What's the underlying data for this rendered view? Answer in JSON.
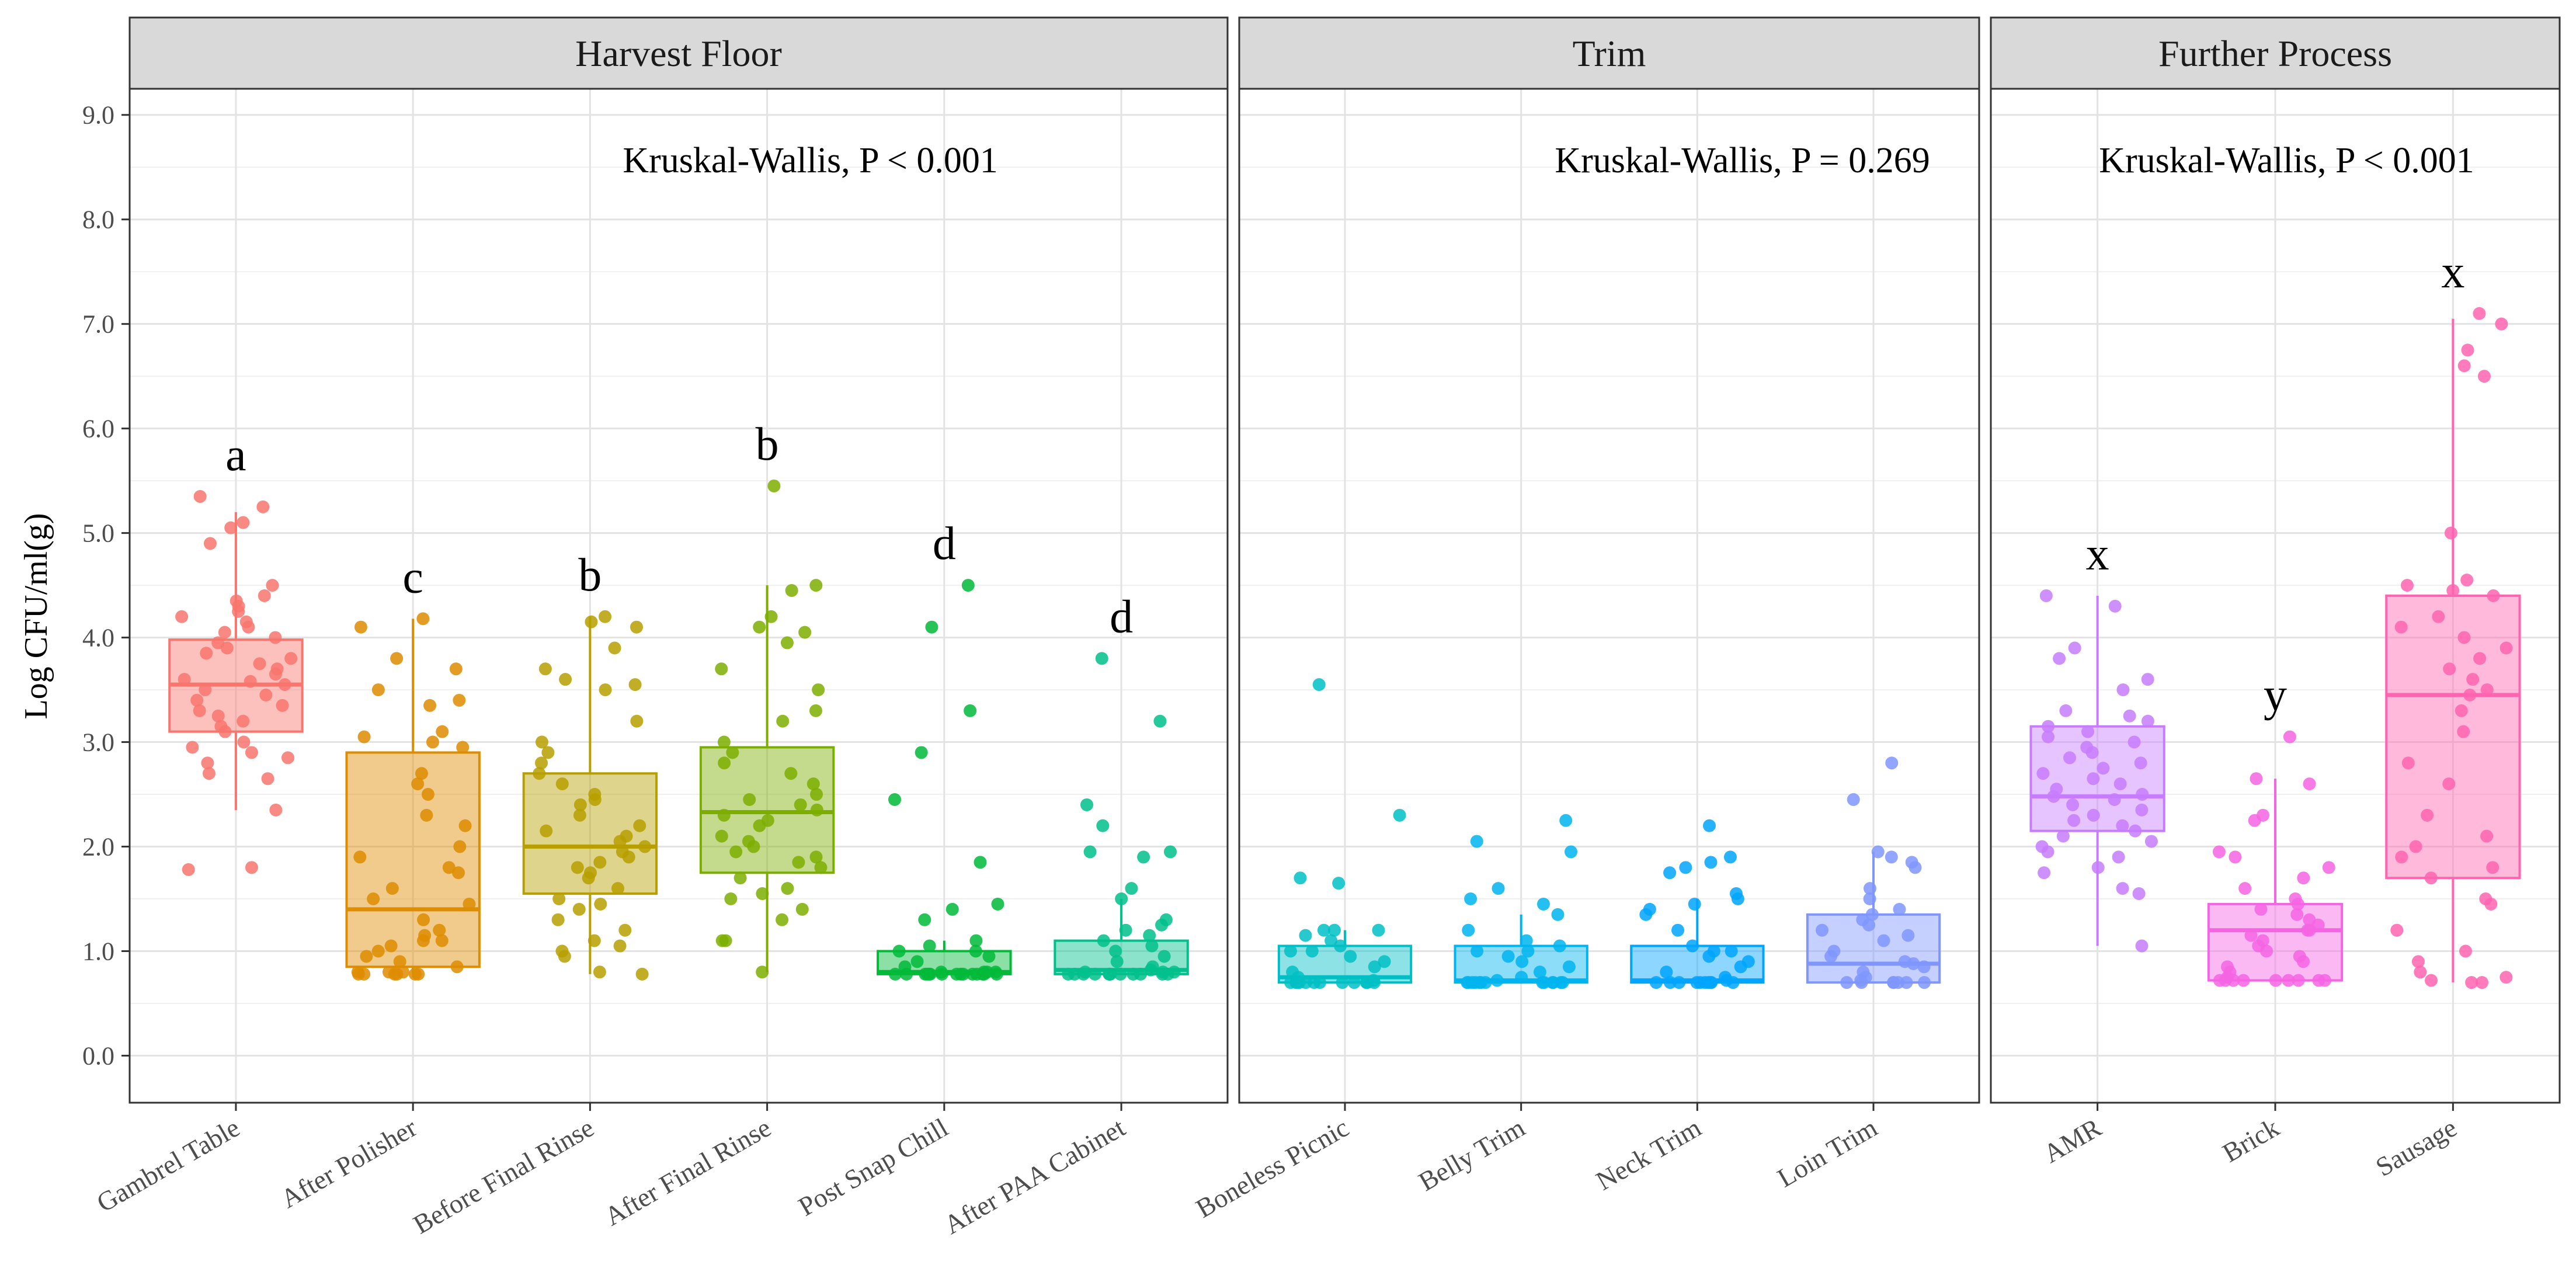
{
  "chart_data": {
    "type": "box",
    "ylabel": "Log CFU/ml(g)",
    "ylim": [
      -0.45,
      9.25
    ],
    "yticks": [
      "0.0",
      "1.0",
      "2.0",
      "3.0",
      "4.0",
      "5.0",
      "6.0",
      "7.0",
      "8.0",
      "9.0"
    ],
    "grid": true,
    "panels": [
      {
        "title": "Harvest Floor",
        "stat": "Kruskal-Wallis, P < 0.001",
        "groups": [
          {
            "name": "Gambrel Table",
            "color": "#F8766D",
            "letter": "a",
            "q1": 3.1,
            "median": 3.55,
            "q3": 3.98,
            "whisker_low": 2.35,
            "whisker_high": 5.2,
            "points": [
              5.35,
              5.25,
              5.1,
              5.05,
              4.9,
              4.5,
              4.4,
              4.35,
              4.3,
              4.25,
              4.2,
              4.15,
              4.1,
              4.05,
              4.0,
              3.95,
              3.9,
              3.85,
              3.8,
              3.75,
              3.7,
              3.65,
              3.6,
              3.58,
              3.55,
              3.5,
              3.45,
              3.4,
              3.35,
              3.3,
              3.25,
              3.2,
              3.15,
              3.1,
              3.0,
              2.95,
              2.9,
              2.85,
              2.8,
              2.7,
              2.65,
              2.35,
              1.8,
              1.78
            ]
          },
          {
            "name": "After Polisher",
            "color": "#DE8C00",
            "letter": "c",
            "q1": 0.85,
            "median": 1.4,
            "q3": 2.9,
            "whisker_low": 0.78,
            "whisker_high": 4.18,
            "points": [
              4.18,
              4.1,
              3.8,
              3.7,
              3.5,
              3.4,
              3.35,
              3.1,
              3.05,
              3.0,
              2.95,
              2.7,
              2.6,
              2.5,
              2.3,
              2.2,
              2.0,
              1.9,
              1.8,
              1.75,
              1.6,
              1.5,
              1.45,
              1.3,
              1.2,
              1.15,
              1.1,
              1.1,
              1.05,
              1.0,
              0.95,
              0.9,
              0.85,
              0.8,
              0.8,
              0.8,
              0.78,
              0.78,
              0.78,
              0.78,
              0.78,
              0.78
            ]
          },
          {
            "name": "Before Final Rinse",
            "color": "#B79F00",
            "letter": "b",
            "q1": 1.55,
            "median": 2.0,
            "q3": 2.7,
            "whisker_low": 0.78,
            "whisker_high": 4.2,
            "points": [
              4.2,
              4.15,
              4.1,
              3.9,
              3.7,
              3.6,
              3.55,
              3.5,
              3.2,
              3.0,
              2.9,
              2.8,
              2.7,
              2.6,
              2.5,
              2.45,
              2.4,
              2.3,
              2.2,
              2.15,
              2.1,
              2.05,
              2.0,
              1.95,
              1.9,
              1.85,
              1.8,
              1.75,
              1.7,
              1.6,
              1.5,
              1.45,
              1.4,
              1.3,
              1.2,
              1.1,
              1.05,
              1.0,
              0.95,
              0.8,
              0.78
            ]
          },
          {
            "name": "After Final Rinse",
            "color": "#7CAE00",
            "letter": "b",
            "q1": 1.75,
            "median": 2.33,
            "q3": 2.95,
            "whisker_low": 0.8,
            "whisker_high": 4.5,
            "points": [
              5.45,
              4.5,
              4.45,
              4.2,
              4.1,
              4.05,
              3.95,
              3.7,
              3.5,
              3.3,
              3.2,
              3.0,
              2.9,
              2.8,
              2.7,
              2.6,
              2.5,
              2.45,
              2.4,
              2.35,
              2.3,
              2.25,
              2.2,
              2.1,
              2.05,
              2.0,
              1.95,
              1.9,
              1.85,
              1.8,
              1.7,
              1.6,
              1.55,
              1.5,
              1.4,
              1.3,
              1.1,
              1.1,
              0.8
            ]
          },
          {
            "name": "Post Snap Chill",
            "color": "#00BA38",
            "letter": "d",
            "q1": 0.78,
            "median": 0.8,
            "q3": 1.0,
            "whisker_low": 0.78,
            "whisker_high": 1.1,
            "points": [
              4.5,
              4.1,
              3.3,
              2.9,
              2.45,
              1.85,
              1.45,
              1.4,
              1.3,
              1.1,
              1.05,
              1.0,
              1.0,
              0.95,
              0.9,
              0.85,
              0.8,
              0.8,
              0.8,
              0.8,
              0.78,
              0.78,
              0.78,
              0.78,
              0.78,
              0.78,
              0.78,
              0.78,
              0.78,
              0.78,
              0.78,
              0.78,
              0.78,
              0.78,
              0.78
            ]
          },
          {
            "name": "After PAA Cabinet",
            "color": "#00C08B",
            "letter": "d",
            "q1": 0.78,
            "median": 0.82,
            "q3": 1.1,
            "whisker_low": 0.78,
            "whisker_high": 1.5,
            "points": [
              3.8,
              3.2,
              2.4,
              2.2,
              1.95,
              1.95,
              1.9,
              1.6,
              1.5,
              1.3,
              1.25,
              1.2,
              1.15,
              1.1,
              1.05,
              1.0,
              0.95,
              0.9,
              0.85,
              0.82,
              0.8,
              0.8,
              0.8,
              0.78,
              0.78,
              0.78,
              0.78,
              0.78,
              0.78,
              0.78,
              0.78,
              0.78,
              0.78,
              0.78,
              0.78
            ]
          }
        ]
      },
      {
        "title": "Trim",
        "stat": "Kruskal-Wallis, P = 0.269",
        "groups": [
          {
            "name": "Boneless Picnic",
            "color": "#00BFC4",
            "letter": "",
            "q1": 0.7,
            "median": 0.75,
            "q3": 1.05,
            "whisker_low": 0.7,
            "whisker_high": 1.2,
            "points": [
              3.55,
              2.3,
              1.7,
              1.65,
              1.2,
              1.2,
              1.2,
              1.15,
              1.1,
              1.05,
              1.0,
              1.0,
              0.95,
              0.9,
              0.85,
              0.8,
              0.75,
              0.72,
              0.7,
              0.7,
              0.7,
              0.7,
              0.7,
              0.7,
              0.7,
              0.7,
              0.7,
              0.7,
              0.7,
              0.7
            ]
          },
          {
            "name": "Belly Trim",
            "color": "#00B4EF",
            "letter": "",
            "q1": 0.7,
            "median": 0.72,
            "q3": 1.05,
            "whisker_low": 0.7,
            "whisker_high": 1.35,
            "points": [
              2.25,
              2.05,
              1.95,
              1.6,
              1.5,
              1.45,
              1.35,
              1.2,
              1.1,
              1.05,
              1.0,
              1.0,
              0.95,
              0.9,
              0.85,
              0.8,
              0.75,
              0.72,
              0.7,
              0.7,
              0.7,
              0.7,
              0.7,
              0.7,
              0.7,
              0.7,
              0.7,
              0.7,
              0.7,
              0.7,
              0.7
            ]
          },
          {
            "name": "Neck Trim",
            "color": "#00A5FF",
            "letter": "",
            "q1": 0.7,
            "median": 0.72,
            "q3": 1.05,
            "whisker_low": 0.7,
            "whisker_high": 1.5,
            "points": [
              2.2,
              1.9,
              1.85,
              1.8,
              1.75,
              1.55,
              1.5,
              1.45,
              1.4,
              1.35,
              1.2,
              1.05,
              1.0,
              1.0,
              0.95,
              0.9,
              0.85,
              0.8,
              0.75,
              0.72,
              0.7,
              0.7,
              0.7,
              0.7,
              0.7,
              0.7,
              0.7,
              0.7,
              0.7,
              0.7
            ]
          },
          {
            "name": "Loin Trim",
            "color": "#7F96FF",
            "letter": "",
            "q1": 0.7,
            "median": 0.88,
            "q3": 1.35,
            "whisker_low": 0.7,
            "whisker_high": 1.95,
            "points": [
              2.8,
              2.45,
              1.95,
              1.9,
              1.85,
              1.8,
              1.6,
              1.5,
              1.4,
              1.35,
              1.3,
              1.25,
              1.2,
              1.15,
              1.1,
              1.0,
              0.95,
              0.9,
              0.88,
              0.85,
              0.8,
              0.75,
              0.72,
              0.7,
              0.7,
              0.7,
              0.7,
              0.7,
              0.7,
              0.7
            ]
          }
        ]
      },
      {
        "title": "Further Process",
        "stat": "Kruskal-Wallis, P < 0.001",
        "groups": [
          {
            "name": "AMR",
            "color": "#C77CFF",
            "letter": "x",
            "q1": 2.15,
            "median": 2.48,
            "q3": 3.15,
            "whisker_low": 1.05,
            "whisker_high": 4.4,
            "points": [
              4.4,
              4.3,
              3.9,
              3.8,
              3.6,
              3.5,
              3.3,
              3.25,
              3.2,
              3.15,
              3.1,
              3.05,
              3.0,
              2.95,
              2.9,
              2.85,
              2.8,
              2.75,
              2.7,
              2.65,
              2.6,
              2.55,
              2.5,
              2.48,
              2.45,
              2.4,
              2.35,
              2.3,
              2.25,
              2.2,
              2.15,
              2.1,
              2.05,
              2.0,
              1.95,
              1.9,
              1.8,
              1.75,
              1.6,
              1.55,
              1.05
            ]
          },
          {
            "name": "Brick",
            "color": "#F564E3",
            "letter": "y",
            "q1": 0.72,
            "median": 1.2,
            "q3": 1.45,
            "whisker_low": 0.72,
            "whisker_high": 2.65,
            "points": [
              3.05,
              2.65,
              2.6,
              2.3,
              2.25,
              1.95,
              1.9,
              1.8,
              1.7,
              1.6,
              1.5,
              1.45,
              1.4,
              1.35,
              1.3,
              1.25,
              1.2,
              1.2,
              1.15,
              1.1,
              1.05,
              1.0,
              0.95,
              0.9,
              0.85,
              0.8,
              0.75,
              0.72,
              0.72,
              0.72,
              0.72,
              0.72,
              0.72,
              0.72,
              0.72,
              0.72
            ]
          },
          {
            "name": "Sausage",
            "color": "#FF64B0",
            "letter": "x",
            "q1": 1.7,
            "median": 3.45,
            "q3": 4.4,
            "whisker_low": 0.7,
            "whisker_high": 7.05,
            "points": [
              7.1,
              7.0,
              6.75,
              6.6,
              6.5,
              5.0,
              4.55,
              4.5,
              4.45,
              4.4,
              4.2,
              4.1,
              4.0,
              3.9,
              3.8,
              3.7,
              3.6,
              3.5,
              3.45,
              3.3,
              3.1,
              2.8,
              2.6,
              2.3,
              2.1,
              2.0,
              1.9,
              1.8,
              1.7,
              1.5,
              1.45,
              1.2,
              1.0,
              0.9,
              0.8,
              0.75,
              0.72,
              0.7,
              0.7
            ]
          }
        ]
      }
    ]
  }
}
